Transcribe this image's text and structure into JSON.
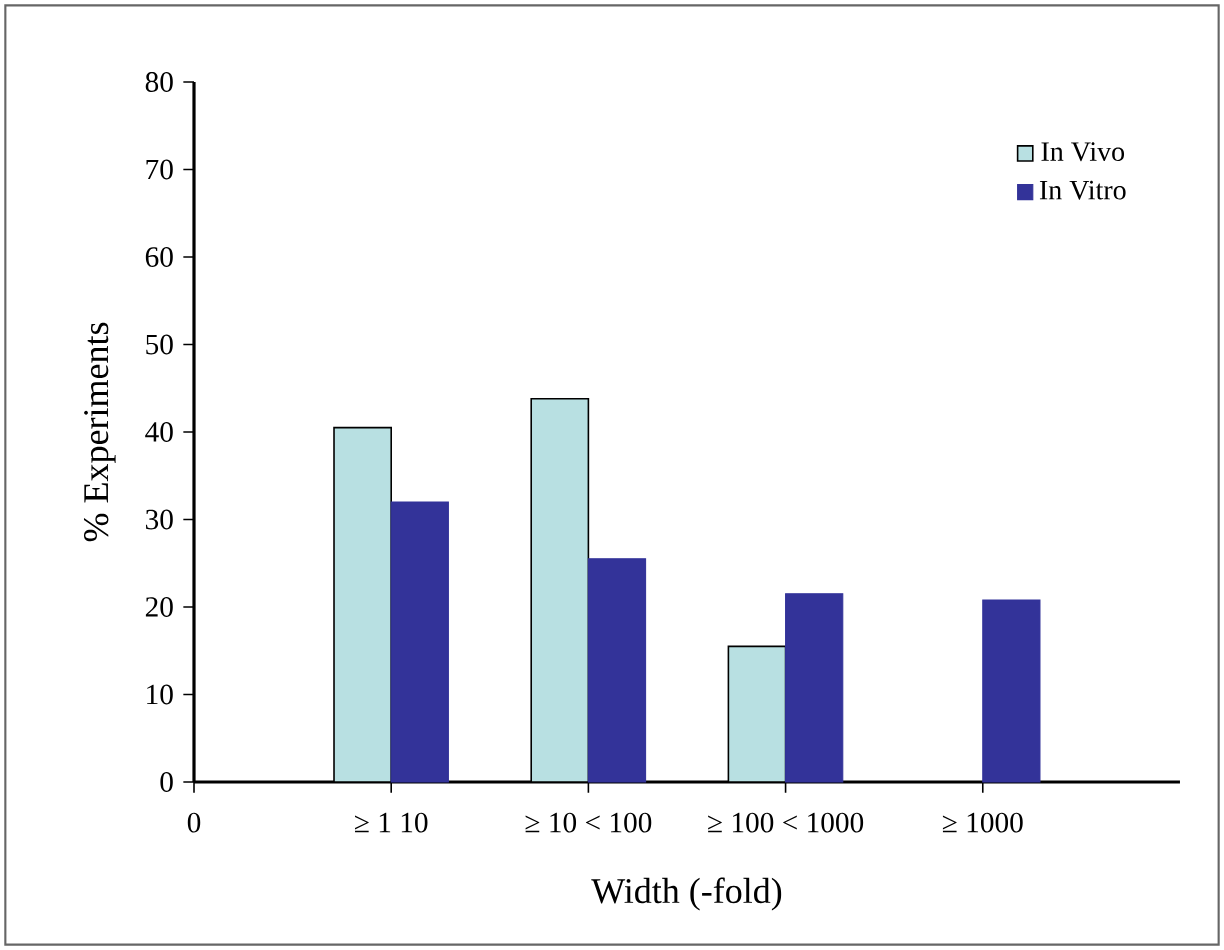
{
  "chart_data": {
    "type": "bar",
    "xlabel": "Width (-fold)",
    "ylabel": "% Experiments",
    "categories": [
      "0",
      "≥ 1  10",
      "≥ 10 < 100",
      "≥ 100 < 1000",
      "≥ 1000"
    ],
    "series": [
      {
        "name": "In Vivo",
        "color": "#b8e0e2",
        "values": [
          null,
          40.5,
          43.8,
          15.5,
          null
        ]
      },
      {
        "name": "In Vitro",
        "color": "#333399",
        "values": [
          null,
          32,
          25.5,
          21.5,
          20.8
        ]
      }
    ],
    "ylim": [
      0,
      80
    ],
    "yticks": [
      0,
      10,
      20,
      30,
      40,
      50,
      60,
      70,
      80
    ],
    "legend": "top right",
    "grid": false
  }
}
